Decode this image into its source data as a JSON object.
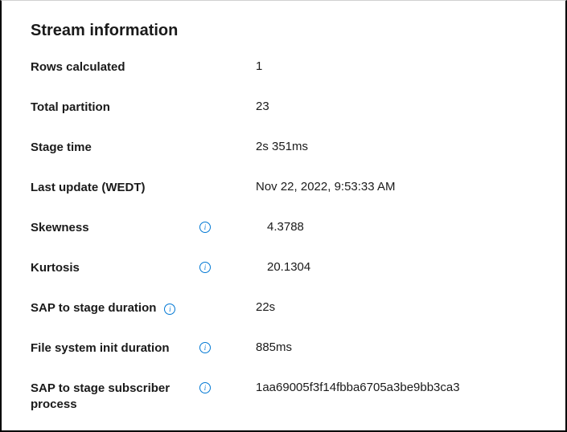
{
  "panel": {
    "title": "Stream information",
    "rows": [
      {
        "label": "Rows calculated",
        "value": "1",
        "has_icon": false,
        "indent": false
      },
      {
        "label": "Total partition",
        "value": "23",
        "has_icon": false,
        "indent": false
      },
      {
        "label": "Stage time",
        "value": "2s 351ms",
        "has_icon": false,
        "indent": false
      },
      {
        "label": "Last update (WEDT)",
        "value": "Nov 22, 2022, 9:53:33 AM",
        "has_icon": false,
        "indent": false
      },
      {
        "label": "Skewness",
        "value": "4.3788",
        "has_icon": true,
        "indent": true
      },
      {
        "label": "Kurtosis",
        "value": "20.1304",
        "has_icon": true,
        "indent": true
      },
      {
        "label": "SAP to stage duration",
        "value": "22s",
        "has_icon": true,
        "indent": false,
        "icon_tight": true
      },
      {
        "label": "File system init duration",
        "value": "885ms",
        "has_icon": true,
        "indent": false
      },
      {
        "label": "SAP to stage subscriber process",
        "value": "1aa69005f3f14fbba6705a3be9bb3ca3",
        "has_icon": true,
        "indent": false
      }
    ]
  },
  "colors": {
    "text": "#1a1a1a",
    "icon": "#0078d4",
    "background": "#ffffff"
  }
}
